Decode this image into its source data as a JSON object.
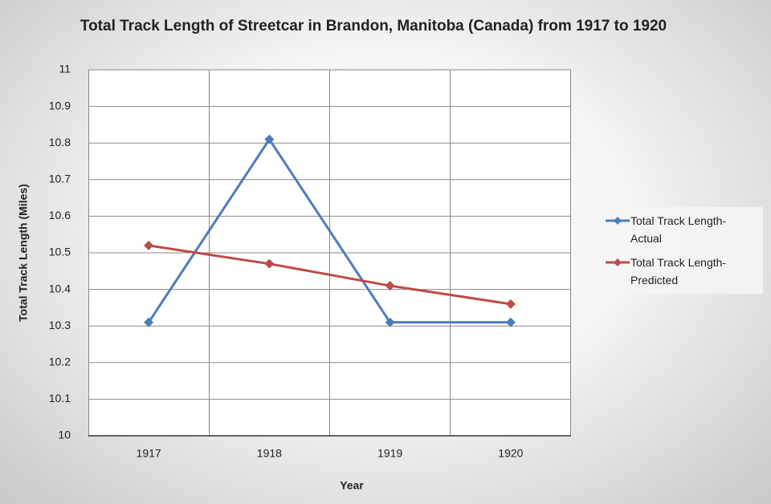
{
  "chart_data": {
    "type": "line",
    "title": "Total Track Length of Streetcar in Brandon, Manitoba (Canada) from 1917 to 1920",
    "x_label": "Year",
    "y_label": "Total Track Length (Miles)",
    "categories": [
      "1917",
      "1918",
      "1919",
      "1920"
    ],
    "series": [
      {
        "name": "Total Track Length-Actual",
        "color": "#4a7ebb",
        "values": [
          10.31,
          10.81,
          10.31,
          10.31
        ]
      },
      {
        "name": "Total Track Length-Predicted",
        "color": "#be4b48",
        "values": [
          10.52,
          10.47,
          10.41,
          10.36
        ]
      }
    ],
    "ylim": [
      10,
      11
    ],
    "yticks": [
      10,
      10.1,
      10.2,
      10.3,
      10.4,
      10.5,
      10.6,
      10.7,
      10.8,
      10.9,
      11
    ],
    "grid": true,
    "legend": "right"
  }
}
